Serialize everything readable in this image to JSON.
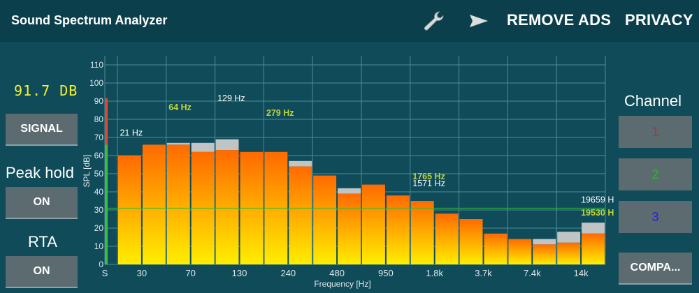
{
  "app": {
    "title": "Sound Spectrum Analyzer"
  },
  "toolbar": {
    "settings_icon": "wrench-icon",
    "share_icon": "send-icon",
    "remove_ads_label": "REMOVE ADS",
    "privacy_label": "PRIVACY"
  },
  "left_panel": {
    "level_readout": "91.7 DB",
    "signal_button": "SIGNAL",
    "peak_hold_label": "Peak hold",
    "peak_hold_button": "ON",
    "rta_label": "RTA",
    "rta_button": "ON"
  },
  "right_panel": {
    "channel_label": "Channel",
    "channels": [
      {
        "label": "1",
        "color": "#e02020"
      },
      {
        "label": "2",
        "color": "#20c020"
      },
      {
        "label": "3",
        "color": "#2020e0"
      }
    ],
    "compare_button": "COMPA..."
  },
  "colors": {
    "bar_top": "#ff6a00",
    "bar_bottom": "#ffee00",
    "peak_hold": "#c0c4c4",
    "reference_line": "#2fbf2f",
    "grid": "#4d8c99",
    "label_white": "#ffffff",
    "label_green": "#bcd53a"
  },
  "chart_data": {
    "type": "bar",
    "ylabel": "SPL [dB]",
    "xlabel": "Frequency [Hz]",
    "ylim": [
      0,
      115
    ],
    "yticks": [
      0,
      10,
      20,
      30,
      40,
      50,
      60,
      70,
      80,
      90,
      100,
      110
    ],
    "xtick_labels": [
      "S",
      "30",
      "70",
      "130",
      "240",
      "480",
      "950",
      "1.8k",
      "3.7k",
      "7.4k",
      "14k"
    ],
    "reference_level": 31,
    "level_meter_value": 91.7,
    "bands": 20,
    "values": [
      60,
      66,
      66,
      62,
      63,
      62,
      62,
      54,
      49,
      39,
      44,
      38,
      35,
      28,
      25,
      17,
      14,
      11,
      12,
      17
    ],
    "peak_hold": [
      60,
      66,
      67,
      67,
      69,
      62,
      62,
      57,
      49,
      42,
      44,
      38,
      35,
      28,
      25,
      17,
      14,
      14,
      18,
      23
    ],
    "peak_labels": [
      {
        "text": "21 Hz",
        "band": 0,
        "level": 71,
        "color": "white"
      },
      {
        "text": "64 Hz",
        "band": 2,
        "level": 85,
        "color": "green"
      },
      {
        "text": "129 Hz",
        "band": 4,
        "level": 90,
        "color": "white"
      },
      {
        "text": "279 Hz",
        "band": 6,
        "level": 82,
        "color": "green"
      },
      {
        "text": "1765 Hz",
        "band": 12,
        "level": 47,
        "color": "green"
      },
      {
        "text": "1571 Hz",
        "band": 12,
        "level": 43,
        "color": "white"
      },
      {
        "text": "19659 H",
        "band": 19,
        "level": 34,
        "color": "white"
      },
      {
        "text": "19530 H",
        "band": 19,
        "level": 27,
        "color": "green"
      }
    ]
  }
}
